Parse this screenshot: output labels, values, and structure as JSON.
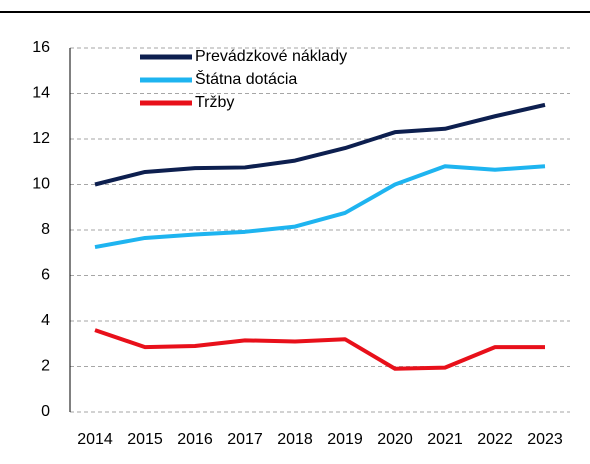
{
  "chart_data": {
    "type": "line",
    "categories": [
      "2014",
      "2015",
      "2016",
      "2017",
      "2018",
      "2019",
      "2020",
      "2021",
      "2022",
      "2023"
    ],
    "series": [
      {
        "name": "Prevádzkové náklady",
        "color": "#0d1f4f",
        "values": [
          10.0,
          10.55,
          10.72,
          10.75,
          11.05,
          11.6,
          12.3,
          12.45,
          13.0,
          13.5
        ]
      },
      {
        "name": "Štátna dotácia",
        "color": "#1eb4f0",
        "values": [
          7.25,
          7.65,
          7.8,
          7.92,
          8.15,
          8.75,
          10.0,
          10.8,
          10.65,
          10.8
        ]
      },
      {
        "name": "Tržby",
        "color": "#e8101a",
        "values": [
          3.6,
          2.85,
          2.9,
          3.15,
          3.1,
          3.2,
          1.9,
          1.95,
          2.85,
          2.85
        ]
      }
    ],
    "ylim": [
      0,
      16
    ],
    "yticks": [
      0,
      2,
      4,
      6,
      8,
      10,
      12,
      14,
      16
    ],
    "grid": true,
    "legend": "top-left"
  }
}
